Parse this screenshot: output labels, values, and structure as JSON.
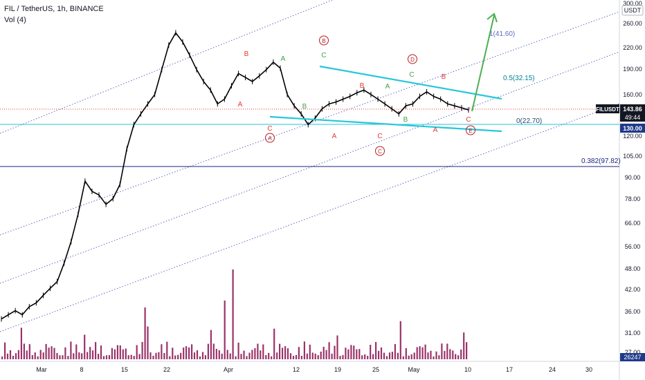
{
  "header": {
    "symbol_line": "FIL / TetherUS, 1h, BINANCE",
    "indicator_line": "Vol (4)"
  },
  "price_scale": {
    "currency_badge": "USDT",
    "ticks": [
      "300.00",
      "260.00",
      "220.00",
      "190.00",
      "160.00",
      "120.00",
      "105.00",
      "90.00",
      "78.00",
      "66.00",
      "56.00",
      "48.00",
      "42.00",
      "36.00",
      "31.00",
      "27.00"
    ],
    "price_label": {
      "symbol": "FILUSDT",
      "value": "143.86",
      "countdown": "49:44"
    },
    "level_label": "130.00",
    "volume_label": "26247"
  },
  "time_scale": {
    "ticks": [
      "Mar",
      "8",
      "15",
      "22",
      "Apr",
      "12",
      "19",
      "25",
      "May",
      "10",
      "17",
      "24",
      "30"
    ]
  },
  "fib_labels": {
    "top": "1(41.60)",
    "mid": "0.5(32.15)",
    "zero": "0(22.70)",
    "low": "0.382(97.82)"
  },
  "wave_labels": [
    {
      "text": "B",
      "color": "#e53935",
      "circled": false
    },
    {
      "text": "A",
      "color": "#e53935",
      "circled": false
    },
    {
      "text": "C",
      "color": "#e53935",
      "circled": false
    },
    {
      "text": "A",
      "color": "#b71c1c",
      "circled": true
    },
    {
      "text": "A",
      "color": "#43a047",
      "circled": false
    },
    {
      "text": "B",
      "color": "#43a047",
      "circled": false
    },
    {
      "text": "C",
      "color": "#43a047",
      "circled": false
    },
    {
      "text": "B",
      "color": "#b71c1c",
      "circled": true
    },
    {
      "text": "B",
      "color": "#e53935",
      "circled": false
    },
    {
      "text": "A",
      "color": "#e53935",
      "circled": false
    },
    {
      "text": "C",
      "color": "#e53935",
      "circled": false
    },
    {
      "text": "C",
      "color": "#b71c1c",
      "circled": true
    },
    {
      "text": "A",
      "color": "#43a047",
      "circled": false
    },
    {
      "text": "B",
      "color": "#43a047",
      "circled": false
    },
    {
      "text": "C",
      "color": "#43a047",
      "circled": false
    },
    {
      "text": "D",
      "color": "#b71c1c",
      "circled": true
    },
    {
      "text": "B",
      "color": "#e53935",
      "circled": false
    },
    {
      "text": "A",
      "color": "#e53935",
      "circled": false
    },
    {
      "text": "C",
      "color": "#e53935",
      "circled": false
    },
    {
      "text": "E",
      "color": "#b71c1c",
      "circled": true
    }
  ],
  "colors": {
    "candles": "#000000",
    "volume": "#880e4f",
    "triangle": "#26c6da",
    "arrow": "#4caf50",
    "channel": "#5c6bc0",
    "price_line": "#e53935",
    "fib_line": "#1a237e"
  },
  "chart_data": {
    "type": "line",
    "series": [
      {
        "values": [
          34,
          35,
          36,
          35,
          37,
          38,
          40,
          42,
          44,
          50,
          58,
          70,
          88,
          82,
          80,
          75,
          78,
          86,
          110,
          130,
          140,
          150,
          160,
          190,
          225,
          245,
          230,
          210,
          190,
          175,
          165,
          150,
          155,
          170,
          185,
          180,
          175,
          182,
          190,
          200,
          192,
          160,
          148,
          140,
          130,
          136,
          145,
          150,
          152,
          155,
          158,
          162,
          165,
          160,
          155,
          150,
          145,
          140,
          148,
          150,
          158,
          163,
          158,
          155,
          150,
          148,
          146,
          143.86
        ]
      }
    ],
    "current_price": 143.86,
    "horizontal_levels": [
      130.0,
      97.82
    ],
    "y_scale": "log"
  }
}
